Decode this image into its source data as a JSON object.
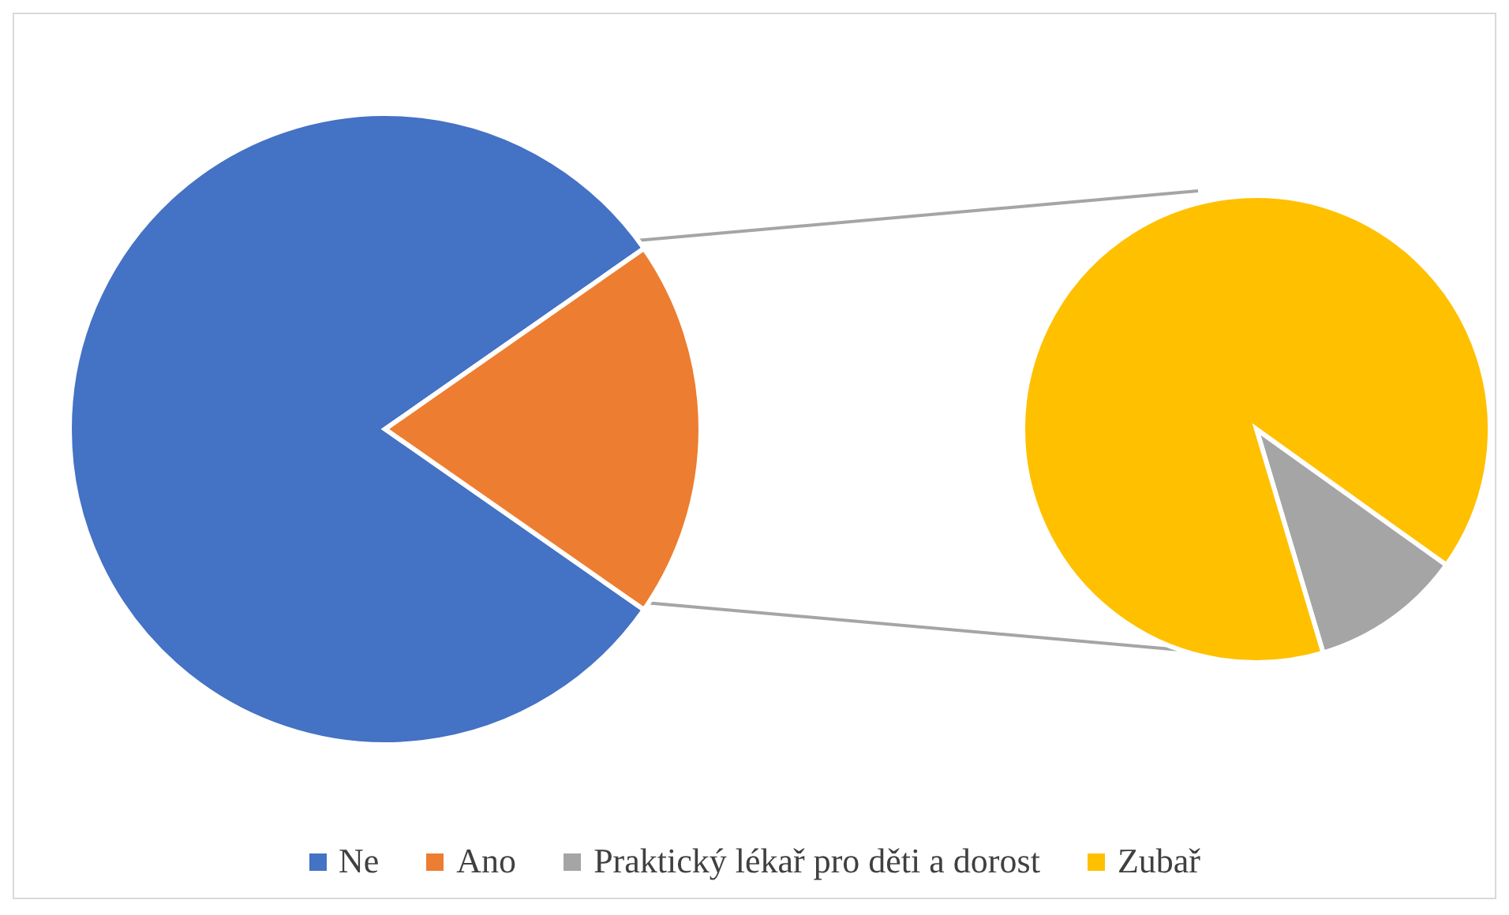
{
  "chart_data": [
    {
      "type": "pie",
      "categories": [
        "Ne",
        "Ano"
      ],
      "values": [
        80.6,
        19.4
      ],
      "colors": [
        "#4472c4",
        "#ed7d31"
      ],
      "legend": "bottom"
    },
    {
      "type": "pie",
      "categories": [
        "Praktický lékař pro děti a dorost",
        "Zubař"
      ],
      "values": [
        10.5,
        89.5
      ],
      "colors": [
        "#a5a5a5",
        "#ffc000"
      ],
      "legend": "bottom"
    }
  ]
}
